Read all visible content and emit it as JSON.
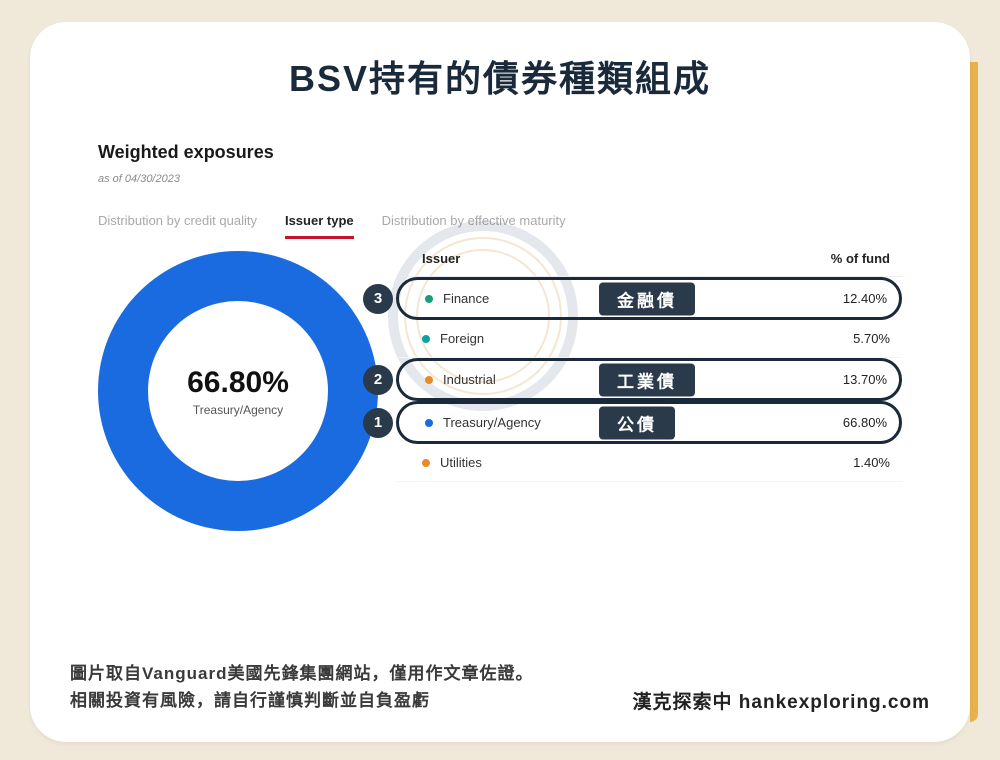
{
  "page": {
    "title": "BSV持有的債券種類組成",
    "background": "#f0e8d8",
    "card_bg": "#ffffff",
    "accent_strip": "#e8b24a"
  },
  "panel": {
    "heading": "Weighted exposures",
    "as_of": "as of 04/30/2023",
    "tabs": [
      {
        "label": "Distribution by credit quality",
        "active": false
      },
      {
        "label": "Issuer type",
        "active": true
      },
      {
        "label": "Distribution by effective maturity",
        "active": false
      }
    ],
    "tab_active_color": "#c4122f"
  },
  "donut": {
    "center_value": "66.80%",
    "center_label": "Treasury/Agency",
    "ring_width": 50,
    "gap_deg": 18,
    "gap_start_deg": 145,
    "slices": [
      {
        "name": "Treasury/Agency",
        "pct": 66.8,
        "color": "#1a6be0"
      },
      {
        "name": "Industrial",
        "pct": 13.7,
        "color": "#e88a2a"
      },
      {
        "name": "Finance",
        "pct": 12.4,
        "color": "#1b9e77"
      },
      {
        "name": "Foreign",
        "pct": 5.7,
        "color": "#0aa3a3"
      },
      {
        "name": "Utilities",
        "pct": 1.4,
        "color": "#1a6be0"
      }
    ]
  },
  "table": {
    "col_issuer": "Issuer",
    "col_pct": "% of fund",
    "rows": [
      {
        "name": "Finance",
        "pct": "12.40%",
        "color": "#1b9e77",
        "highlight": true,
        "badge": "3",
        "tag": "金融債"
      },
      {
        "name": "Foreign",
        "pct": "5.70%",
        "color": "#0aa3a3",
        "highlight": false
      },
      {
        "name": "Industrial",
        "pct": "13.70%",
        "color": "#e88a2a",
        "highlight": true,
        "badge": "2",
        "tag": "工業債"
      },
      {
        "name": "Treasury/Agency",
        "pct": "66.80%",
        "color": "#1a6be0",
        "highlight": true,
        "badge": "1",
        "tag": "公債"
      },
      {
        "name": "Utilities",
        "pct": "1.40%",
        "color": "#e88a2a",
        "highlight": false
      }
    ]
  },
  "footer": {
    "line1": "圖片取自Vanguard美國先鋒集團網站，僅用作文章佐證。",
    "line2": "相關投資有風險，請自行謹慎判斷並自負盈虧",
    "brand": "漢克探索中 hankexploring.com"
  },
  "colors": {
    "title": "#1a2a3a",
    "badge_bg": "#2b3a4a",
    "text": "#333333",
    "muted": "#a9a9a9"
  }
}
